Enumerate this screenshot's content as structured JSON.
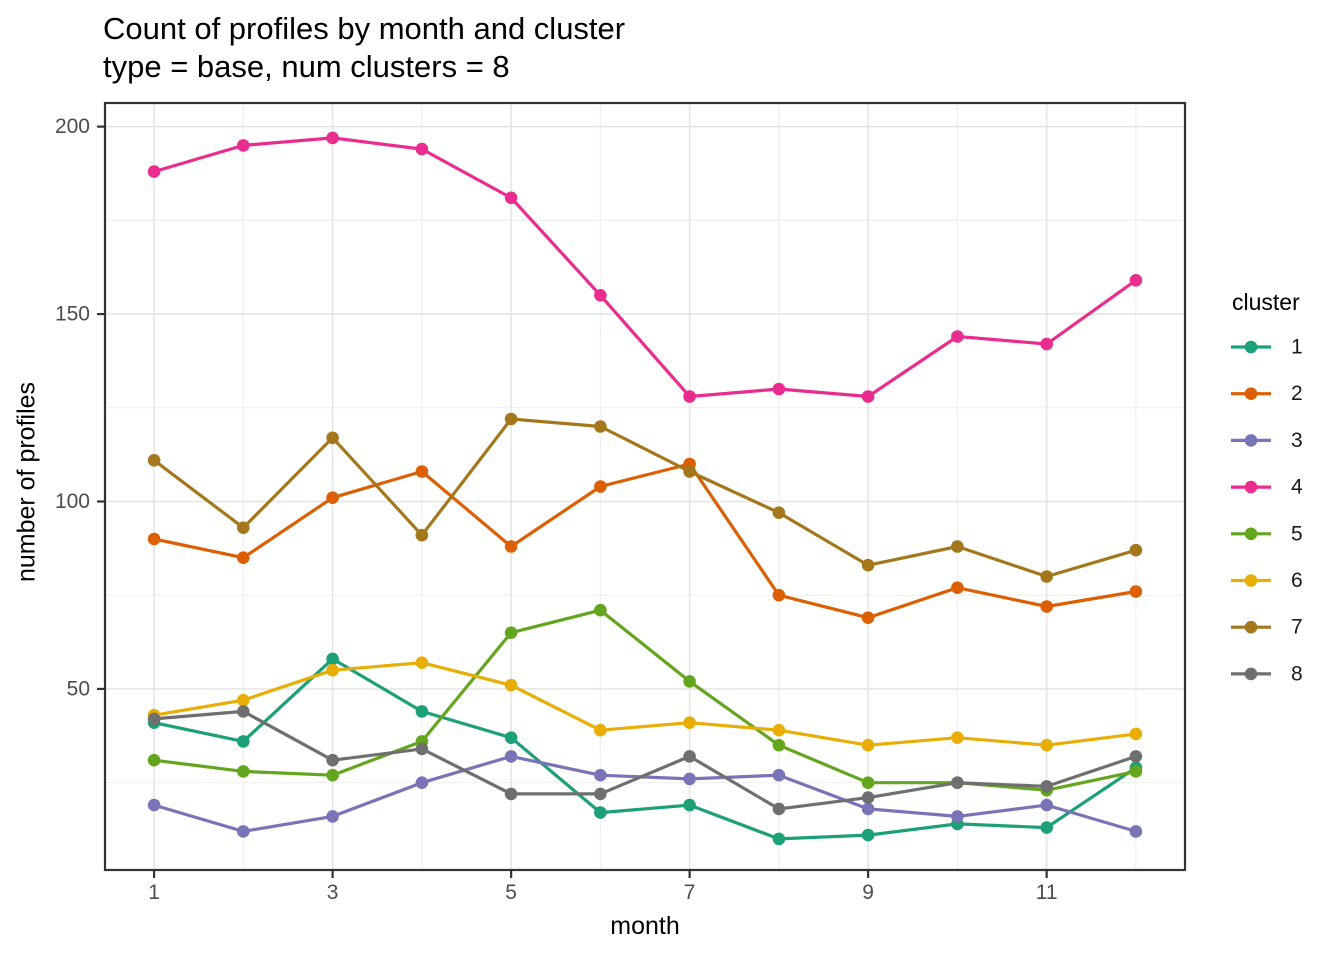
{
  "header": {
    "title": "Count of profiles by month and cluster",
    "subtitle": "type = base, num clusters = 8"
  },
  "axes": {
    "x": {
      "label": "month",
      "tick_labels": [
        "1",
        "3",
        "5",
        "7",
        "9",
        "11"
      ],
      "tick_values": [
        1,
        3,
        5,
        7,
        9,
        11
      ],
      "minor_values": [
        2,
        4,
        6,
        8,
        10,
        12
      ],
      "range": [
        0.45,
        12.55
      ]
    },
    "y": {
      "label": "number of profiles",
      "tick_labels": [
        "50",
        "100",
        "150",
        "200"
      ],
      "tick_values": [
        50,
        100,
        150,
        200
      ],
      "minor_values": [
        25,
        75,
        125,
        175
      ],
      "range": [
        1.7,
        206.3
      ]
    }
  },
  "legend": {
    "title": "cluster",
    "entries": [
      "1",
      "2",
      "3",
      "4",
      "5",
      "6",
      "7",
      "8"
    ]
  },
  "chart_data": {
    "type": "line",
    "title": "Count of profiles by month and cluster",
    "subtitle": "type = base, num clusters = 8",
    "xlabel": "month",
    "ylabel": "number of profiles",
    "x": [
      1,
      2,
      3,
      4,
      5,
      6,
      7,
      8,
      9,
      10,
      11,
      12
    ],
    "xlim": [
      0.45,
      12.55
    ],
    "ylim": [
      1.7,
      206.3
    ],
    "grid": true,
    "legend_title": "cluster",
    "legend_position": "right",
    "series": [
      {
        "name": "1",
        "color": "#1BA077",
        "values": [
          41,
          36,
          58,
          44,
          37,
          17,
          19,
          10,
          11,
          14,
          13,
          29
        ]
      },
      {
        "name": "2",
        "color": "#DC5F04",
        "values": [
          90,
          85,
          101,
          108,
          88,
          104,
          110,
          75,
          69,
          77,
          72,
          76
        ]
      },
      {
        "name": "3",
        "color": "#7973B8",
        "values": [
          19,
          12,
          16,
          25,
          32,
          27,
          26,
          27,
          18,
          16,
          19,
          12
        ]
      },
      {
        "name": "4",
        "color": "#EA2C8F",
        "values": [
          188,
          195,
          197,
          194,
          181,
          155,
          128,
          130,
          128,
          144,
          142,
          159
        ]
      },
      {
        "name": "5",
        "color": "#63A61E",
        "values": [
          31,
          28,
          27,
          36,
          65,
          71,
          52,
          35,
          25,
          25,
          23,
          28
        ]
      },
      {
        "name": "6",
        "color": "#E8AE06",
        "values": [
          43,
          47,
          55,
          57,
          51,
          39,
          41,
          39,
          35,
          37,
          35,
          38
        ]
      },
      {
        "name": "7",
        "color": "#A5771D",
        "values": [
          111,
          93,
          117,
          91,
          122,
          120,
          108,
          97,
          83,
          88,
          80,
          87
        ]
      },
      {
        "name": "8",
        "color": "#6F6F6F",
        "values": [
          42,
          44,
          31,
          34,
          22,
          22,
          32,
          18,
          21,
          25,
          24,
          32
        ]
      }
    ]
  },
  "colors": {
    "background": "#FFFFFF",
    "panel_border": "#333333",
    "grid_major": "#E4E4E4",
    "grid_minor": "#F1F1F1",
    "tick_mark": "#333333",
    "tick_label": "#4D4D4D",
    "text": "#000000"
  }
}
